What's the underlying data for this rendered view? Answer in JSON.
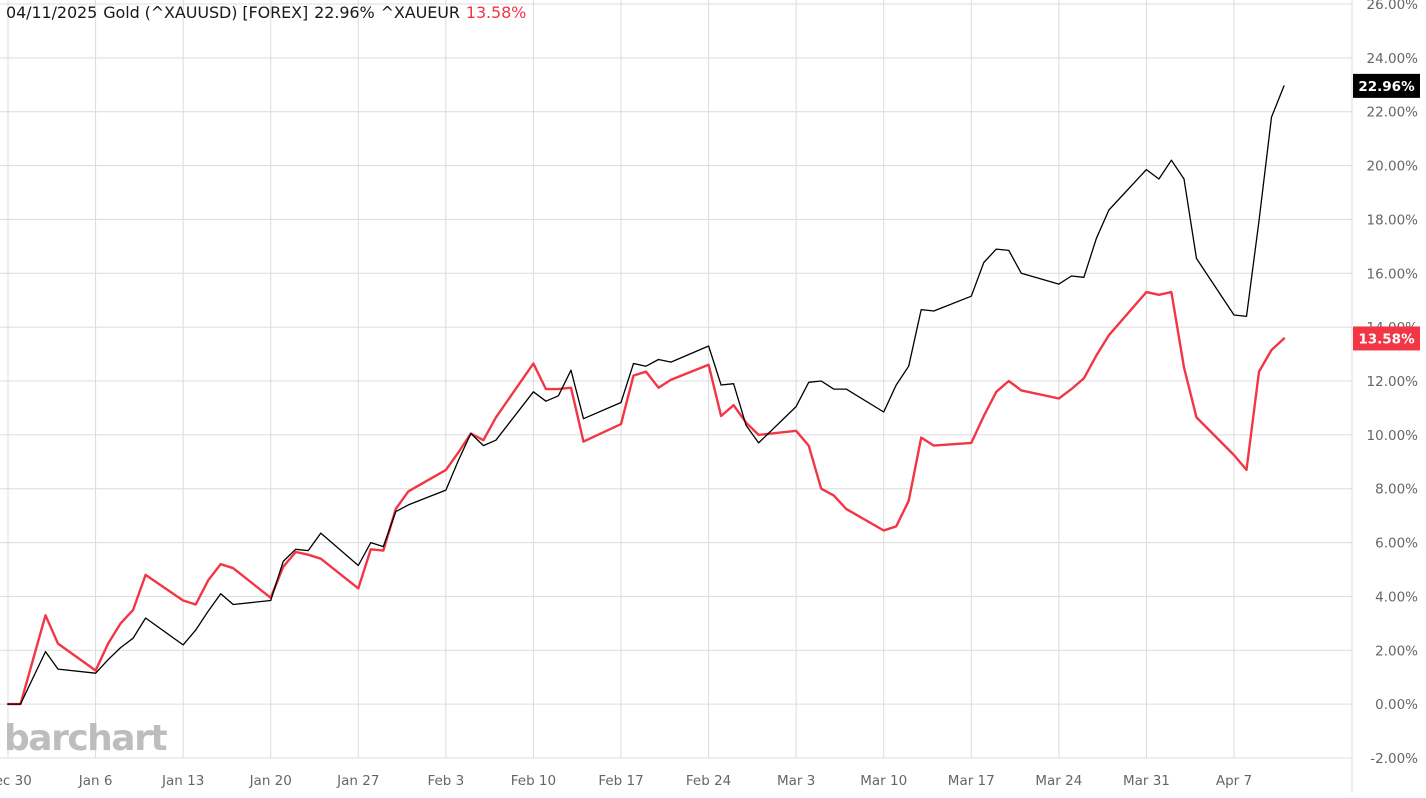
{
  "header": {
    "date": "04/11/2025",
    "primary_name": "Gold (^XAUUSD) [FOREX]",
    "primary_value": "22.96%",
    "compare_symbol": "^XAUEUR",
    "compare_value": "13.58%"
  },
  "watermark": "barchart",
  "colors": {
    "primary": "#000000",
    "compare": "#f23645",
    "grid": "#dcdcdc",
    "axis_text": "#666666"
  },
  "chart_data": {
    "type": "line",
    "title": "",
    "xlabel": "",
    "ylabel": "",
    "ylim": [
      -2,
      26
    ],
    "y_ticks": [
      -2,
      0,
      2,
      4,
      6,
      8,
      10,
      12,
      14,
      16,
      18,
      20,
      22,
      24,
      26
    ],
    "y_tick_labels": [
      "-2.00%",
      "0.00%",
      "2.00%",
      "4.00%",
      "6.00%",
      "8.00%",
      "10.00%",
      "12.00%",
      "14.00%",
      "16.00%",
      "18.00%",
      "20.00%",
      "22.00%",
      "24.00%",
      "26.00%"
    ],
    "x_tick_labels": [
      {
        "date": "2024-12-30",
        "label": "Dec 30"
      },
      {
        "date": "2025-01-06",
        "label": "Jan 6"
      },
      {
        "date": "2025-01-13",
        "label": "Jan 13"
      },
      {
        "date": "2025-01-20",
        "label": "Jan 20"
      },
      {
        "date": "2025-01-27",
        "label": "Jan 27"
      },
      {
        "date": "2025-02-03",
        "label": "Feb 3"
      },
      {
        "date": "2025-02-10",
        "label": "Feb 10"
      },
      {
        "date": "2025-02-17",
        "label": "Feb 17"
      },
      {
        "date": "2025-02-24",
        "label": "Feb 24"
      },
      {
        "date": "2025-03-03",
        "label": "Mar 3"
      },
      {
        "date": "2025-03-10",
        "label": "Mar 10"
      },
      {
        "date": "2025-03-17",
        "label": "Mar 17"
      },
      {
        "date": "2025-03-24",
        "label": "Mar 24"
      },
      {
        "date": "2025-03-31",
        "label": "Mar 31"
      },
      {
        "date": "2025-04-07",
        "label": "Apr 7"
      }
    ],
    "grid": true,
    "x": [
      "2024-12-30",
      "2024-12-31",
      "2025-01-02",
      "2025-01-03",
      "2025-01-06",
      "2025-01-07",
      "2025-01-08",
      "2025-01-09",
      "2025-01-10",
      "2025-01-13",
      "2025-01-14",
      "2025-01-15",
      "2025-01-16",
      "2025-01-17",
      "2025-01-20",
      "2025-01-21",
      "2025-01-22",
      "2025-01-23",
      "2025-01-24",
      "2025-01-27",
      "2025-01-28",
      "2025-01-29",
      "2025-01-30",
      "2025-01-31",
      "2025-02-03",
      "2025-02-04",
      "2025-02-05",
      "2025-02-06",
      "2025-02-07",
      "2025-02-10",
      "2025-02-11",
      "2025-02-12",
      "2025-02-13",
      "2025-02-14",
      "2025-02-17",
      "2025-02-18",
      "2025-02-19",
      "2025-02-20",
      "2025-02-21",
      "2025-02-24",
      "2025-02-25",
      "2025-02-26",
      "2025-02-27",
      "2025-02-28",
      "2025-03-03",
      "2025-03-04",
      "2025-03-05",
      "2025-03-06",
      "2025-03-07",
      "2025-03-10",
      "2025-03-11",
      "2025-03-12",
      "2025-03-13",
      "2025-03-14",
      "2025-03-17",
      "2025-03-18",
      "2025-03-19",
      "2025-03-20",
      "2025-03-21",
      "2025-03-24",
      "2025-03-25",
      "2025-03-26",
      "2025-03-27",
      "2025-03-28",
      "2025-03-31",
      "2025-04-01",
      "2025-04-02",
      "2025-04-03",
      "2025-04-04",
      "2025-04-07",
      "2025-04-08",
      "2025-04-09",
      "2025-04-10",
      "2025-04-11"
    ],
    "series": [
      {
        "name": "Gold (^XAUUSD) [FOREX]",
        "color": "#000000",
        "last_label": "22.96%",
        "values": [
          0.0,
          0.0,
          1.95,
          1.3,
          1.15,
          1.65,
          2.1,
          2.45,
          3.2,
          2.2,
          2.75,
          3.45,
          4.1,
          3.7,
          3.85,
          5.3,
          5.75,
          5.7,
          6.35,
          5.15,
          6.0,
          5.85,
          7.15,
          7.4,
          7.95,
          9.05,
          10.05,
          9.6,
          9.8,
          11.6,
          11.25,
          11.45,
          12.4,
          10.6,
          11.2,
          12.65,
          12.55,
          12.8,
          12.7,
          13.3,
          11.85,
          11.9,
          10.35,
          9.7,
          11.05,
          11.95,
          12.0,
          11.7,
          11.7,
          10.85,
          11.85,
          12.55,
          14.65,
          14.6,
          15.15,
          16.4,
          16.9,
          16.85,
          16.0,
          15.6,
          15.9,
          15.85,
          17.3,
          18.35,
          19.85,
          19.5,
          20.2,
          19.5,
          16.55,
          14.45,
          14.4,
          17.95,
          21.8,
          22.96
        ]
      },
      {
        "name": "^XAUEUR",
        "color": "#f23645",
        "last_label": "13.58%",
        "values": [
          0.0,
          0.0,
          3.3,
          2.25,
          1.25,
          2.25,
          3.0,
          3.5,
          4.8,
          3.85,
          3.7,
          4.6,
          5.2,
          5.05,
          3.95,
          5.1,
          5.65,
          5.55,
          5.4,
          4.3,
          5.75,
          5.7,
          7.25,
          7.9,
          8.7,
          9.35,
          10.05,
          9.8,
          10.65,
          12.65,
          11.7,
          11.7,
          11.75,
          9.75,
          10.4,
          12.2,
          12.35,
          11.75,
          12.05,
          12.6,
          10.7,
          11.1,
          10.45,
          10.0,
          10.15,
          9.6,
          8.0,
          7.75,
          7.25,
          6.45,
          6.6,
          7.55,
          9.9,
          9.6,
          9.7,
          10.7,
          11.6,
          12.0,
          11.65,
          11.35,
          11.7,
          12.1,
          12.95,
          13.7,
          15.3,
          15.2,
          15.3,
          12.5,
          10.65,
          9.25,
          8.7,
          12.35,
          13.15,
          13.58
        ]
      }
    ]
  }
}
